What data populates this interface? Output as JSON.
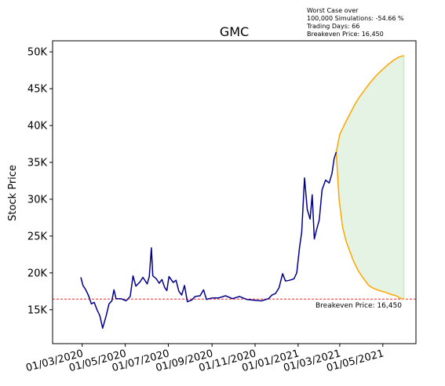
{
  "annotation": {
    "line1": "Worst Case over",
    "line2": "100,000 Simulations: -54.66 %",
    "line3": "Trading Days: 66",
    "line4": "Breakeven Price: 16,450"
  },
  "chart_data": {
    "type": "line",
    "title": "GMC",
    "xlabel": "",
    "ylabel": "Stock Price",
    "ylim": [
      10400,
      51500
    ],
    "yticks": [
      15000,
      20000,
      25000,
      30000,
      35000,
      40000,
      45000,
      50000
    ],
    "ytick_labels": [
      "15K",
      "20K",
      "25K",
      "30K",
      "35K",
      "40K",
      "45K",
      "50K"
    ],
    "xtick_labels": [
      "01/03/2020",
      "01/05/2020",
      "01/07/2020",
      "01/09/2020",
      "01/11/2020",
      "01/01/2021",
      "01/03/2021",
      "01/05/2021"
    ],
    "xticks": [
      "2020-03-01",
      "2020-05-01",
      "2020-07-01",
      "2020-09-01",
      "2020-11-01",
      "2021-01-01",
      "2021-03-01",
      "2021-05-01"
    ],
    "xlim": [
      "2020-01-19",
      "2021-06-17"
    ],
    "breakeven": {
      "value": 16450,
      "label": "Breakeven Price: 16,450",
      "color": "#ff0000"
    },
    "historical": {
      "color": "#00008b",
      "points": [
        [
          "2020-02-28",
          19400
        ],
        [
          "2020-03-02",
          18300
        ],
        [
          "2020-03-06",
          17700
        ],
        [
          "2020-03-10",
          16900
        ],
        [
          "2020-03-14",
          15800
        ],
        [
          "2020-03-18",
          16000
        ],
        [
          "2020-03-22",
          15000
        ],
        [
          "2020-03-26",
          14200
        ],
        [
          "2020-03-30",
          12500
        ],
        [
          "2020-04-04",
          14200
        ],
        [
          "2020-04-08",
          15800
        ],
        [
          "2020-04-12",
          16200
        ],
        [
          "2020-04-15",
          17700
        ],
        [
          "2020-04-18",
          16500
        ],
        [
          "2020-04-25",
          16500
        ],
        [
          "2020-05-02",
          16200
        ],
        [
          "2020-05-08",
          16800
        ],
        [
          "2020-05-12",
          19600
        ],
        [
          "2020-05-16",
          18200
        ],
        [
          "2020-05-22",
          18800
        ],
        [
          "2020-05-26",
          19400
        ],
        [
          "2020-06-01",
          18500
        ],
        [
          "2020-06-04",
          19500
        ],
        [
          "2020-06-07",
          23400
        ],
        [
          "2020-06-09",
          19600
        ],
        [
          "2020-06-14",
          19200
        ],
        [
          "2020-06-18",
          18600
        ],
        [
          "2020-06-22",
          19100
        ],
        [
          "2020-06-26",
          18000
        ],
        [
          "2020-06-29",
          17600
        ],
        [
          "2020-07-02",
          19500
        ],
        [
          "2020-07-08",
          18700
        ],
        [
          "2020-07-12",
          19000
        ],
        [
          "2020-07-16",
          17500
        ],
        [
          "2020-07-20",
          17000
        ],
        [
          "2020-07-24",
          18300
        ],
        [
          "2020-07-28",
          16100
        ],
        [
          "2020-08-03",
          16300
        ],
        [
          "2020-08-08",
          16800
        ],
        [
          "2020-08-15",
          16900
        ],
        [
          "2020-08-20",
          17700
        ],
        [
          "2020-08-24",
          16400
        ],
        [
          "2020-09-01",
          16600
        ],
        [
          "2020-09-10",
          16600
        ],
        [
          "2020-09-20",
          16900
        ],
        [
          "2020-09-30",
          16500
        ],
        [
          "2020-10-10",
          16800
        ],
        [
          "2020-10-20",
          16400
        ],
        [
          "2020-10-30",
          16300
        ],
        [
          "2020-11-10",
          16200
        ],
        [
          "2020-11-20",
          16500
        ],
        [
          "2020-11-25",
          17000
        ],
        [
          "2020-11-30",
          17200
        ],
        [
          "2020-12-05",
          18000
        ],
        [
          "2020-12-10",
          19900
        ],
        [
          "2020-12-14",
          18900
        ],
        [
          "2020-12-20",
          19000
        ],
        [
          "2020-12-26",
          19200
        ],
        [
          "2020-12-30",
          20000
        ],
        [
          "2021-01-03",
          23500
        ],
        [
          "2021-01-06",
          25500
        ],
        [
          "2021-01-10",
          32900
        ],
        [
          "2021-01-14",
          28600
        ],
        [
          "2021-01-18",
          27300
        ],
        [
          "2021-01-21",
          30600
        ],
        [
          "2021-01-24",
          24600
        ],
        [
          "2021-01-27",
          25800
        ],
        [
          "2021-01-31",
          27200
        ],
        [
          "2021-02-04",
          31300
        ],
        [
          "2021-02-09",
          32600
        ],
        [
          "2021-02-14",
          32200
        ],
        [
          "2021-02-18",
          33500
        ],
        [
          "2021-02-21",
          35500
        ],
        [
          "2021-02-24",
          36400
        ]
      ]
    },
    "projections": {
      "start": "2021-02-24",
      "end": "2021-05-31",
      "start_value": 36400,
      "best_case": {
        "color": "#ffa500",
        "points": [
          [
            "2021-02-24",
            36400
          ],
          [
            "2021-03-01",
            38800
          ],
          [
            "2021-03-08",
            40200
          ],
          [
            "2021-03-15",
            41500
          ],
          [
            "2021-03-22",
            42800
          ],
          [
            "2021-03-29",
            43900
          ],
          [
            "2021-04-05",
            44800
          ],
          [
            "2021-04-12",
            45700
          ],
          [
            "2021-04-19",
            46500
          ],
          [
            "2021-04-26",
            47200
          ],
          [
            "2021-05-03",
            47800
          ],
          [
            "2021-05-10",
            48400
          ],
          [
            "2021-05-17",
            48900
          ],
          [
            "2021-05-24",
            49300
          ],
          [
            "2021-05-31",
            49500
          ]
        ]
      },
      "worst_case": {
        "color": "#ffa500",
        "points": [
          [
            "2021-02-24",
            36400
          ],
          [
            "2021-02-28",
            30000
          ],
          [
            "2021-03-05",
            26200
          ],
          [
            "2021-03-10",
            24300
          ],
          [
            "2021-03-15",
            23000
          ],
          [
            "2021-03-20",
            21700
          ],
          [
            "2021-03-27",
            20300
          ],
          [
            "2021-04-04",
            19200
          ],
          [
            "2021-04-11",
            18300
          ],
          [
            "2021-04-18",
            17900
          ],
          [
            "2021-04-26",
            17600
          ],
          [
            "2021-05-04",
            17400
          ],
          [
            "2021-05-12",
            17100
          ],
          [
            "2021-05-20",
            16900
          ],
          [
            "2021-05-25",
            16600
          ],
          [
            "2021-05-31",
            16450
          ]
        ]
      },
      "band_color": "#2ca02c"
    }
  }
}
